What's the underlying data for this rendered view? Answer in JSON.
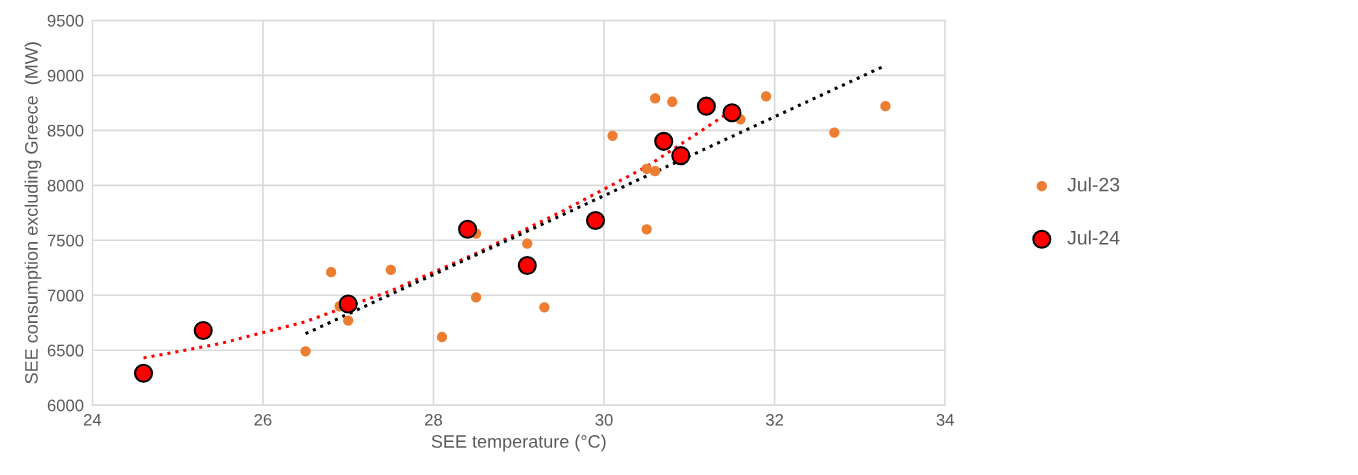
{
  "chart_data": {
    "type": "scatter",
    "xlabel": "SEE temperature (°C)",
    "ylabel": "SEE consumption excluding Greece  (MW)",
    "xlim": [
      24,
      34
    ],
    "xticks": [
      24,
      26,
      28,
      30,
      32,
      34
    ],
    "ylim": [
      6000,
      9500
    ],
    "yticks": [
      6000,
      6500,
      7000,
      7500,
      8000,
      8500,
      9000,
      9500
    ],
    "grid": true,
    "legend": "right",
    "series": [
      {
        "name": "Jul-23",
        "color": "#ed7d31",
        "marker": "circle",
        "x": [
          26.5,
          26.8,
          26.9,
          27.0,
          27.5,
          28.1,
          28.5,
          28.5,
          29.1,
          29.3,
          30.1,
          30.5,
          30.5,
          30.6,
          30.6,
          30.8,
          31.6,
          31.9,
          32.7,
          33.3
        ],
        "values": [
          6490,
          7210,
          6900,
          6770,
          7230,
          6620,
          7560,
          6980,
          7470,
          6890,
          8450,
          8150,
          7600,
          8130,
          8790,
          8760,
          8600,
          8810,
          8480,
          8720
        ]
      },
      {
        "name": "Jul-24",
        "color": "#ff0000",
        "marker": "circle",
        "x": [
          24.6,
          25.3,
          27.0,
          28.4,
          29.1,
          29.9,
          30.7,
          30.9,
          31.2,
          31.5
        ],
        "values": [
          6290,
          6680,
          6920,
          7600,
          7270,
          7680,
          8400,
          8270,
          8720,
          8660
        ]
      },
      {
        "type": "line",
        "color": "#ff0000",
        "line_style": "dotted",
        "marker": "none",
        "x": [
          24.6,
          25.5,
          26.5,
          27.5,
          28.5,
          29.5,
          30.5,
          31.5
        ],
        "values": [
          6430,
          6560,
          6760,
          7040,
          7380,
          7760,
          8170,
          8680
        ]
      },
      {
        "type": "line",
        "color": "#000000",
        "line_style": "dotted",
        "marker": "none",
        "x": [
          26.5,
          33.3
        ],
        "values": [
          6650,
          9090
        ]
      }
    ]
  }
}
